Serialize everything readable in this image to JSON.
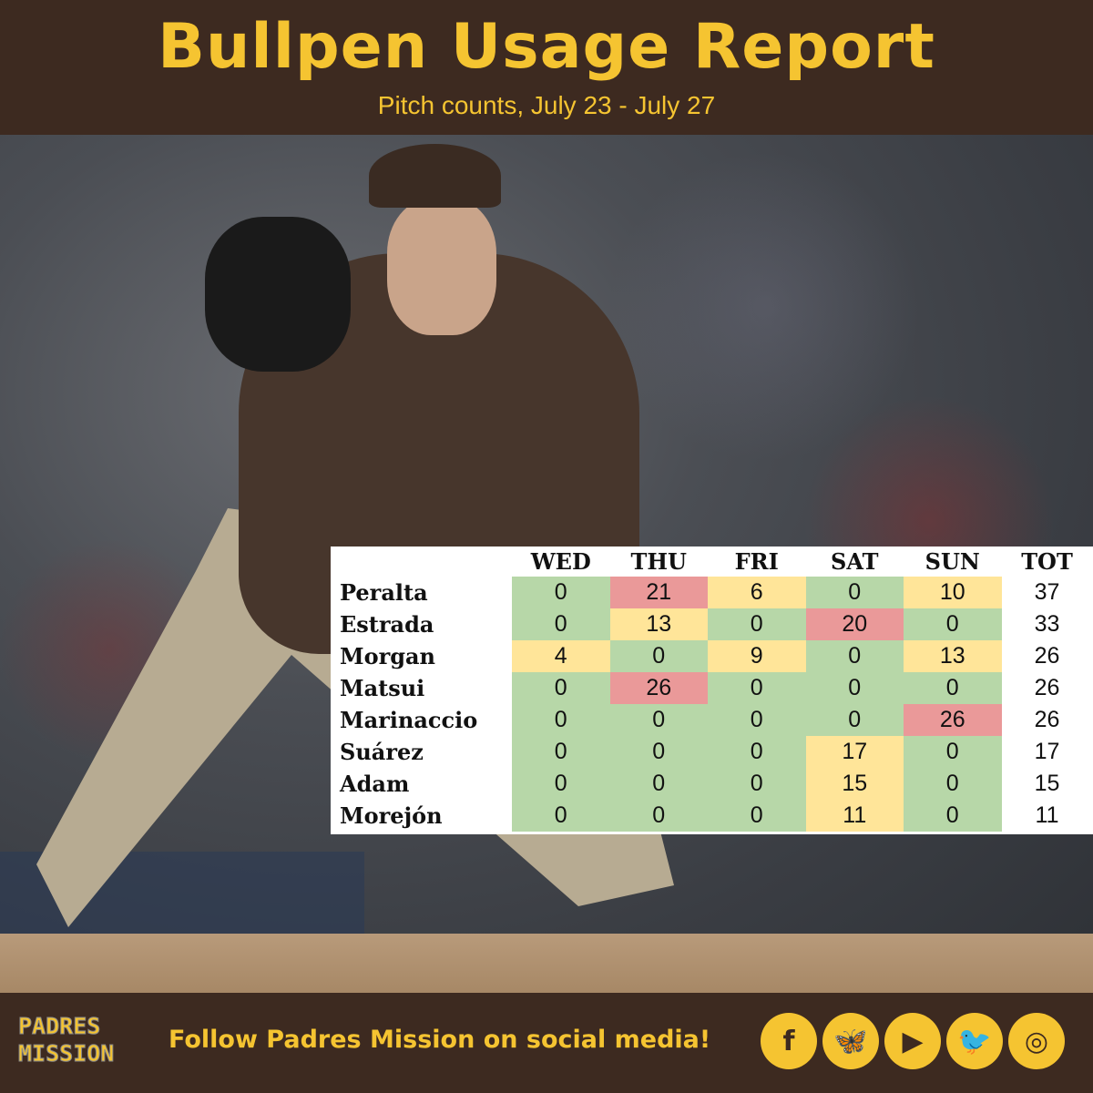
{
  "header": {
    "title": "Bullpen Usage Report",
    "subtitle": "Pitch counts, July 23 - July 27"
  },
  "colors": {
    "background": "#3d2a20",
    "accent": "#f5c431",
    "low": "#b7d7a8",
    "medium": "#ffe599",
    "high": "#ea9999"
  },
  "table": {
    "columns": [
      "WED",
      "THU",
      "FRI",
      "SAT",
      "SUN",
      "TOT"
    ],
    "rows": [
      {
        "name": "Peralta",
        "values": [
          0,
          21,
          6,
          0,
          10
        ],
        "total": 37,
        "levels": [
          "low",
          "high",
          "medium",
          "low",
          "medium"
        ]
      },
      {
        "name": "Estrada",
        "values": [
          0,
          13,
          0,
          20,
          0
        ],
        "total": 33,
        "levels": [
          "low",
          "medium",
          "low",
          "high",
          "low"
        ]
      },
      {
        "name": "Morgan",
        "values": [
          4,
          0,
          9,
          0,
          13
        ],
        "total": 26,
        "levels": [
          "medium",
          "low",
          "medium",
          "low",
          "medium"
        ]
      },
      {
        "name": "Matsui",
        "values": [
          0,
          26,
          0,
          0,
          0
        ],
        "total": 26,
        "levels": [
          "low",
          "high",
          "low",
          "low",
          "low"
        ]
      },
      {
        "name": "Marinaccio",
        "values": [
          0,
          0,
          0,
          0,
          26
        ],
        "total": 26,
        "levels": [
          "low",
          "low",
          "low",
          "low",
          "high"
        ]
      },
      {
        "name": "Suárez",
        "values": [
          0,
          0,
          0,
          17,
          0
        ],
        "total": 17,
        "levels": [
          "low",
          "low",
          "low",
          "medium",
          "low"
        ]
      },
      {
        "name": "Adam",
        "values": [
          0,
          0,
          0,
          15,
          0
        ],
        "total": 15,
        "levels": [
          "low",
          "low",
          "low",
          "medium",
          "low"
        ]
      },
      {
        "name": "Morejón",
        "values": [
          0,
          0,
          0,
          11,
          0
        ],
        "total": 11,
        "levels": [
          "low",
          "low",
          "low",
          "medium",
          "low"
        ]
      }
    ]
  },
  "footer": {
    "logo_text": "PADRES MISSION",
    "follow_text": "Follow Padres Mission on social media!",
    "social": [
      {
        "icon": "facebook-icon",
        "glyph": "f"
      },
      {
        "icon": "bluesky-icon",
        "glyph": "🦋"
      },
      {
        "icon": "youtube-icon",
        "glyph": "▶"
      },
      {
        "icon": "twitter-icon",
        "glyph": "🐦"
      },
      {
        "icon": "instagram-icon",
        "glyph": "◎"
      }
    ]
  }
}
